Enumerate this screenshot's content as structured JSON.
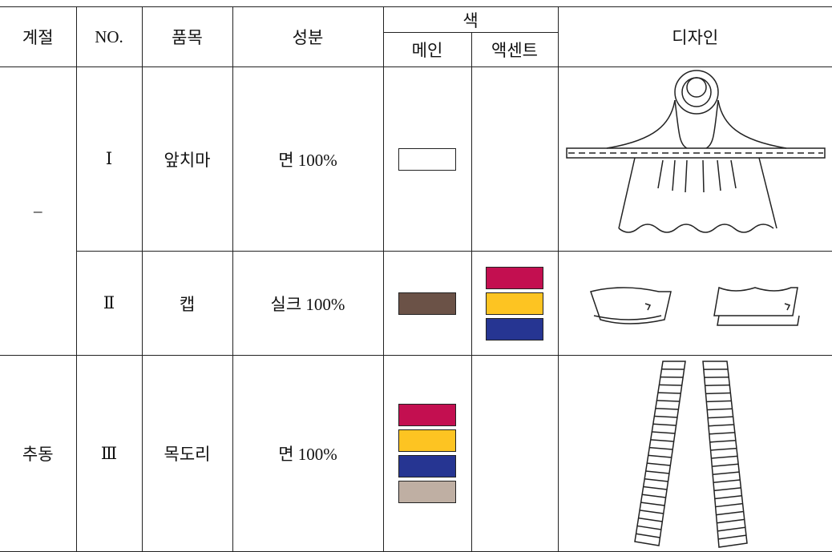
{
  "table": {
    "header": {
      "season": "계절",
      "no": "NO.",
      "item": "품목",
      "material": "성분",
      "color": "색",
      "main": "메인",
      "accent": "액센트",
      "design": "디자인"
    },
    "rows": [
      {
        "season": "–",
        "no": "Ⅰ",
        "item": "앞치마",
        "material": "면 100%",
        "main_colors": [
          "#ffffff"
        ]
      },
      {
        "no": "Ⅱ",
        "item": "캡",
        "material": "실크 100%",
        "main_colors": [
          "#6b5247"
        ],
        "accent_colors": [
          "#c30f50",
          "#fdc422",
          "#263592"
        ]
      },
      {
        "season": "추동",
        "no": "Ⅲ",
        "item": "목도리",
        "material": "면 100%",
        "main_colors": [
          "#c30f50",
          "#fdc422",
          "#263592",
          "#bfafa3"
        ]
      }
    ]
  }
}
